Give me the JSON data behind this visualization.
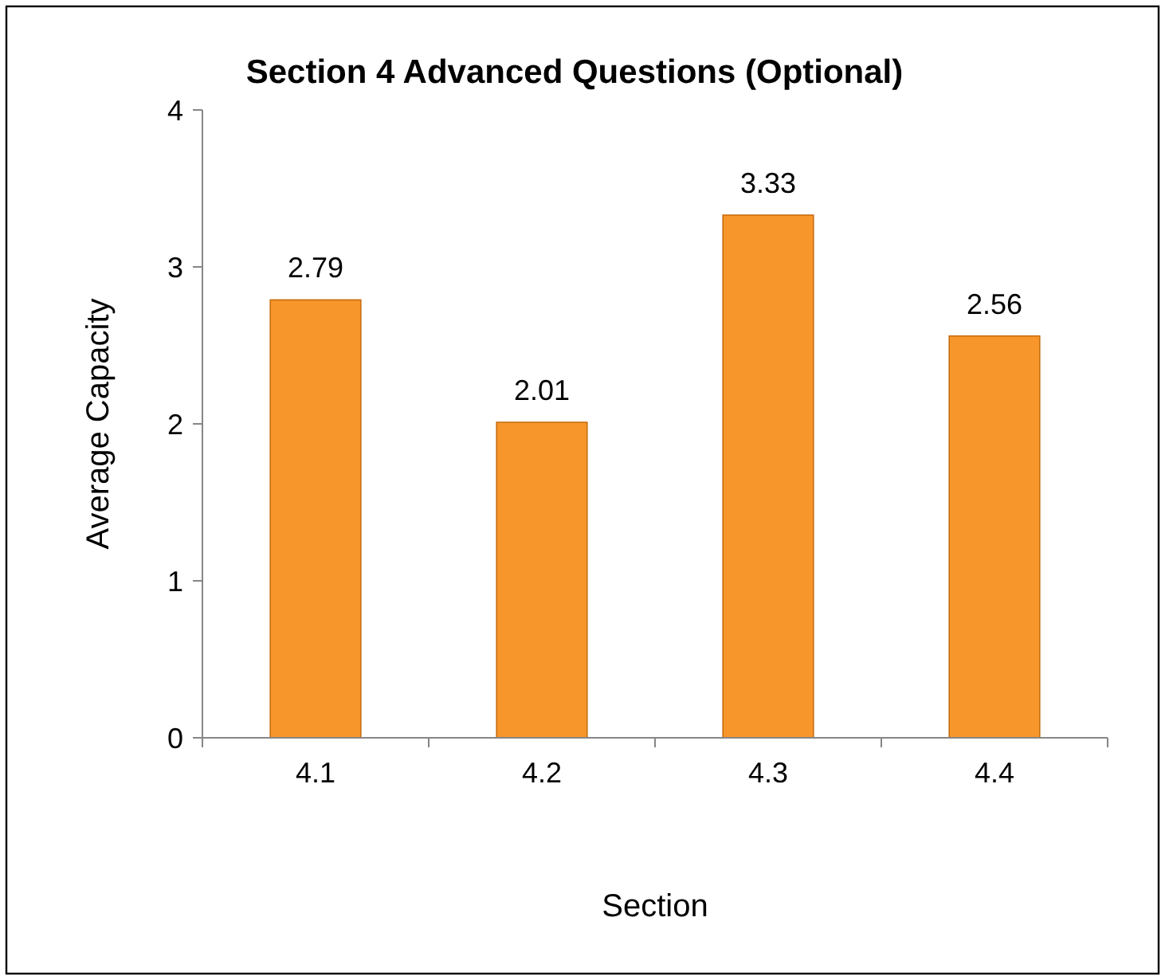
{
  "chart_data": {
    "type": "bar",
    "title": "Section 4 Advanced Questions (Optional)",
    "xlabel": "Section",
    "ylabel": "Average Capacity",
    "categories": [
      "4.1",
      "4.2",
      "4.3",
      "4.4"
    ],
    "values": [
      2.79,
      2.01,
      3.33,
      2.56
    ],
    "color": "#f7962a",
    "ylim": [
      0,
      4
    ],
    "yticks": [
      0,
      1,
      2,
      3,
      4
    ],
    "grid": false,
    "data_labels": true
  }
}
